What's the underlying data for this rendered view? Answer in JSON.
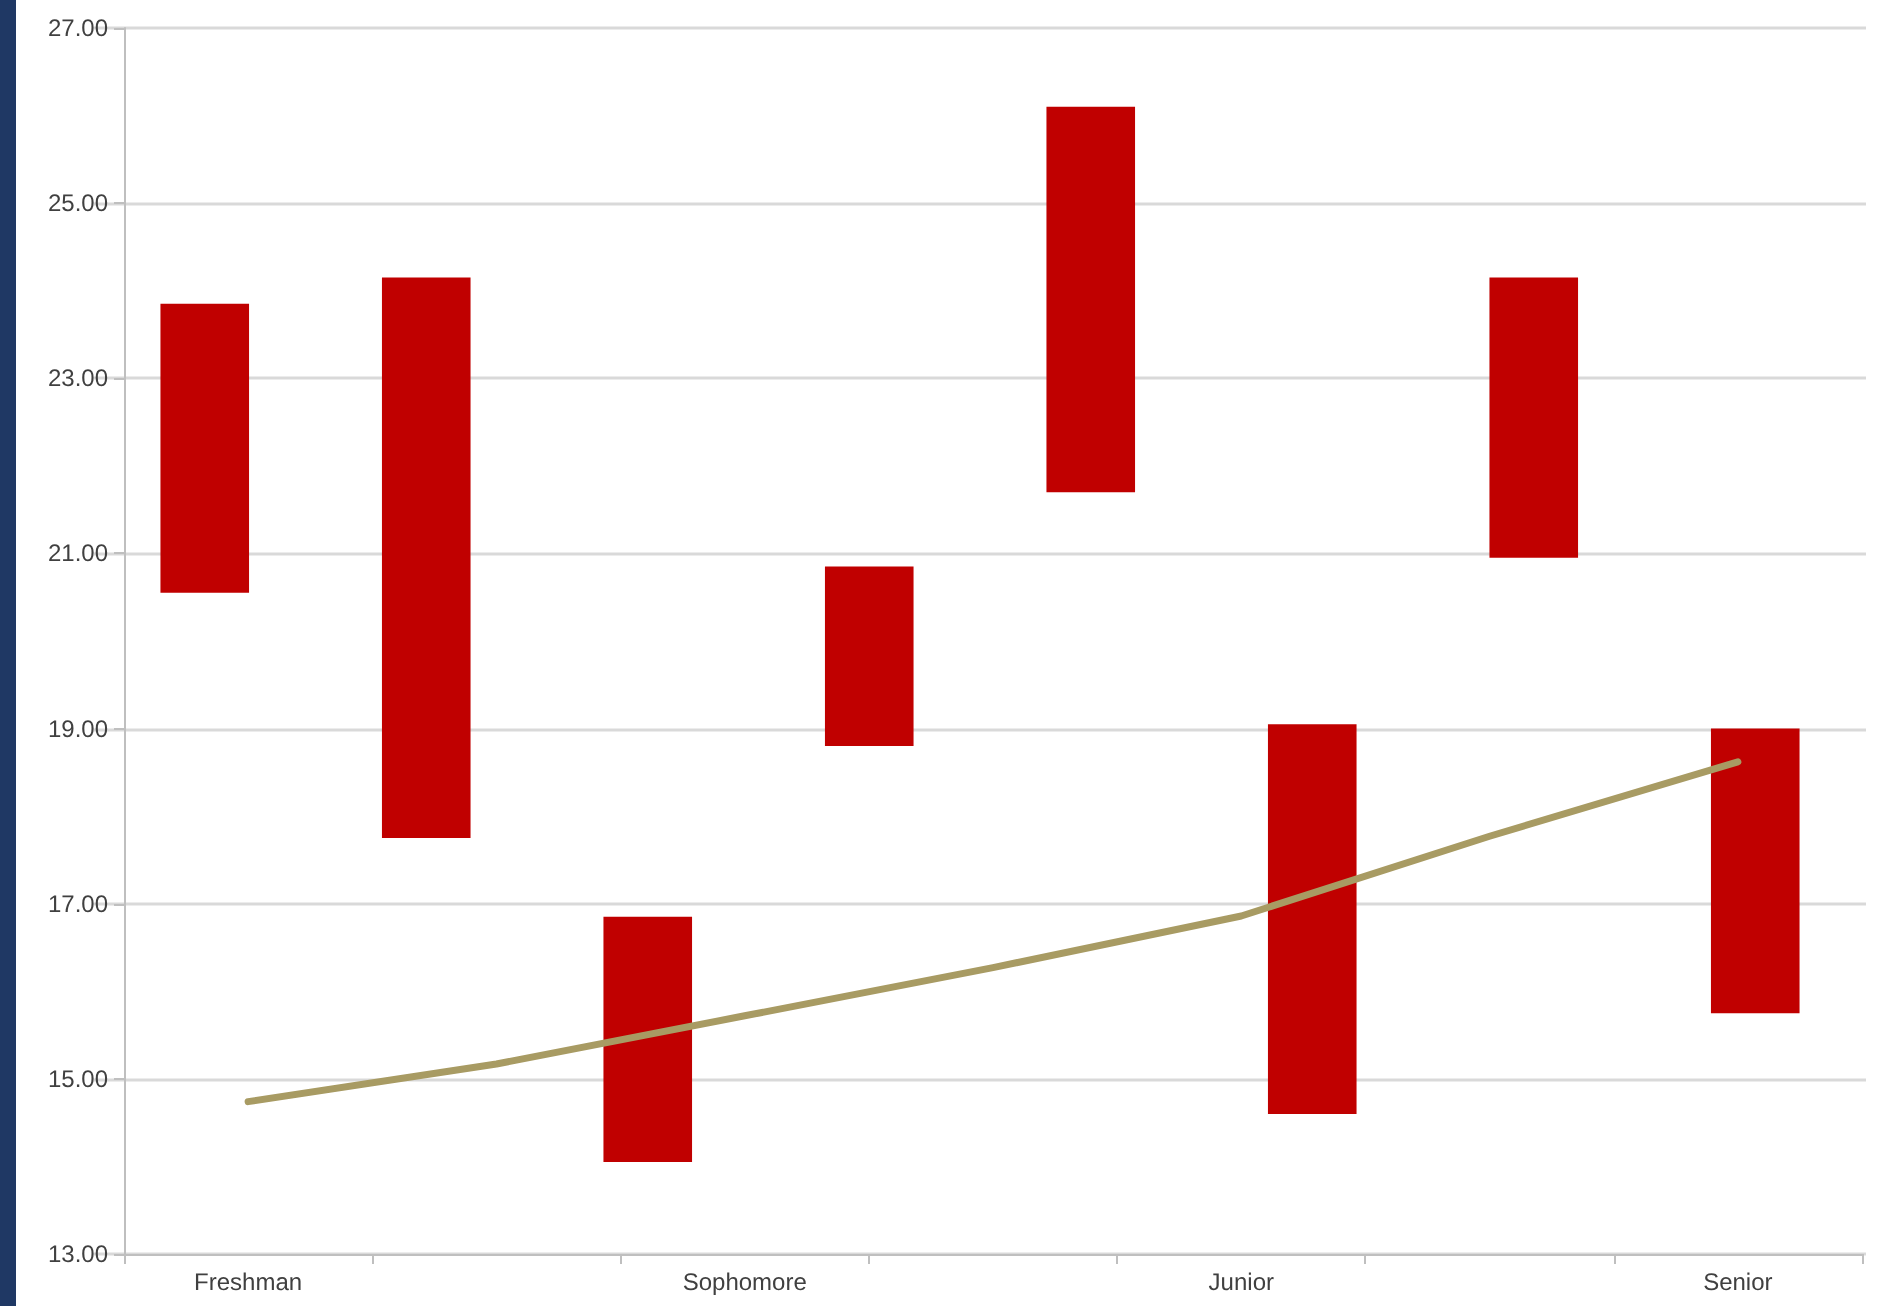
{
  "chart_data": [
    {
      "type": "bar",
      "categories": [
        null,
        null,
        null,
        null,
        null,
        null,
        null,
        null
      ],
      "series": [
        {
          "color": "#c00000",
          "values": [
            3.3,
            6.4,
            2.8,
            2.05,
            4.4,
            4.45,
            3.2,
            3.25
          ],
          "base": [
            20.55,
            17.75,
            14.05,
            18.8,
            21.7,
            14.6,
            20.95,
            15.75
          ]
        }
      ],
      "ylim": [
        13,
        27
      ],
      "yticks": [
        {
          "value": 13,
          "label": "13.00"
        },
        {
          "value": 15,
          "label": "15.00"
        },
        {
          "value": 17,
          "label": "17.00"
        },
        {
          "value": 19,
          "label": "19.00"
        },
        {
          "value": 21,
          "label": "21.00"
        },
        {
          "value": 23,
          "label": "23.00"
        },
        {
          "value": 25,
          "label": "25.00"
        },
        {
          "value": 27,
          "label": "27.00"
        }
      ],
      "grid": "y",
      "tick_labels": "y"
    },
    {
      "type": "line",
      "categories": [
        "Freshman",
        null,
        "Sophomore",
        null,
        "Junior",
        null,
        "Senior"
      ],
      "series": [
        {
          "color": "#a89b63",
          "values": [
            14.74,
            15.17,
            15.72,
            16.27,
            16.86,
            17.77,
            18.62
          ]
        }
      ],
      "ylim": [
        13,
        27
      ],
      "tick_labels": "x",
      "marker": "none",
      "line_style": "solid"
    }
  ]
}
